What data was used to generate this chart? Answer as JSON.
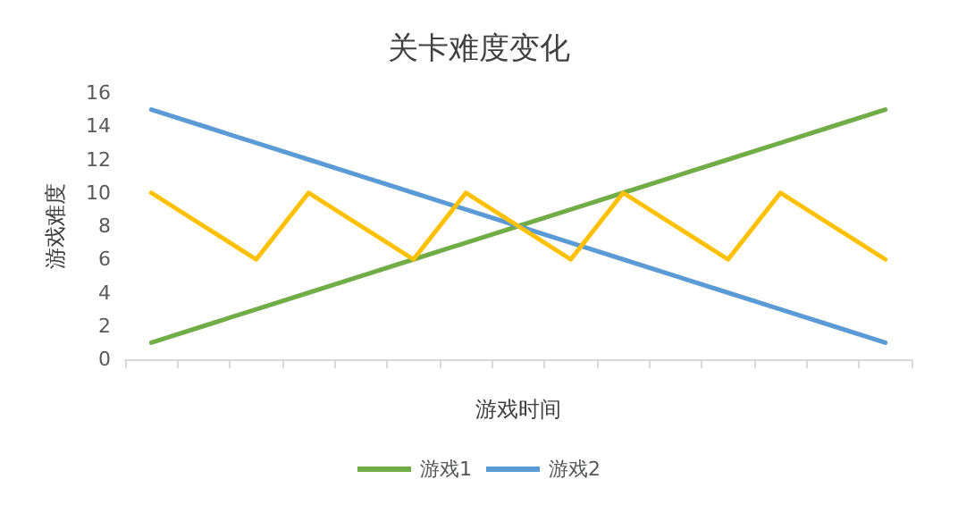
{
  "chart_data": {
    "type": "line",
    "title": "关卡难度变化",
    "xlabel": "游戏时间",
    "ylabel": "游戏难度",
    "categories": [
      null,
      null,
      null,
      null,
      null,
      null,
      null,
      null,
      null,
      null,
      null,
      null,
      null,
      null,
      null
    ],
    "series": [
      {
        "name": "游戏1",
        "color": "#70ad47",
        "values": [
          1,
          2,
          3,
          4,
          5,
          6,
          7,
          8,
          9,
          10,
          11,
          12,
          13,
          14,
          15
        ]
      },
      {
        "name": "游戏2",
        "color": "#5b9bd5",
        "values": [
          15,
          14,
          13,
          12,
          11,
          10,
          9,
          8,
          7,
          6,
          5,
          4,
          3,
          2,
          1
        ]
      },
      {
        "color": "#ffc000",
        "values": [
          10,
          8,
          6,
          10,
          8,
          6,
          10,
          8,
          6,
          10,
          8,
          6,
          10,
          8,
          6
        ]
      }
    ],
    "ylim": [
      0,
      16
    ],
    "yticks": [
      0,
      2,
      4,
      6,
      8,
      10,
      12,
      14,
      16
    ],
    "grid": false,
    "legend": "bottom",
    "marker": "none",
    "line_style": "solid"
  }
}
